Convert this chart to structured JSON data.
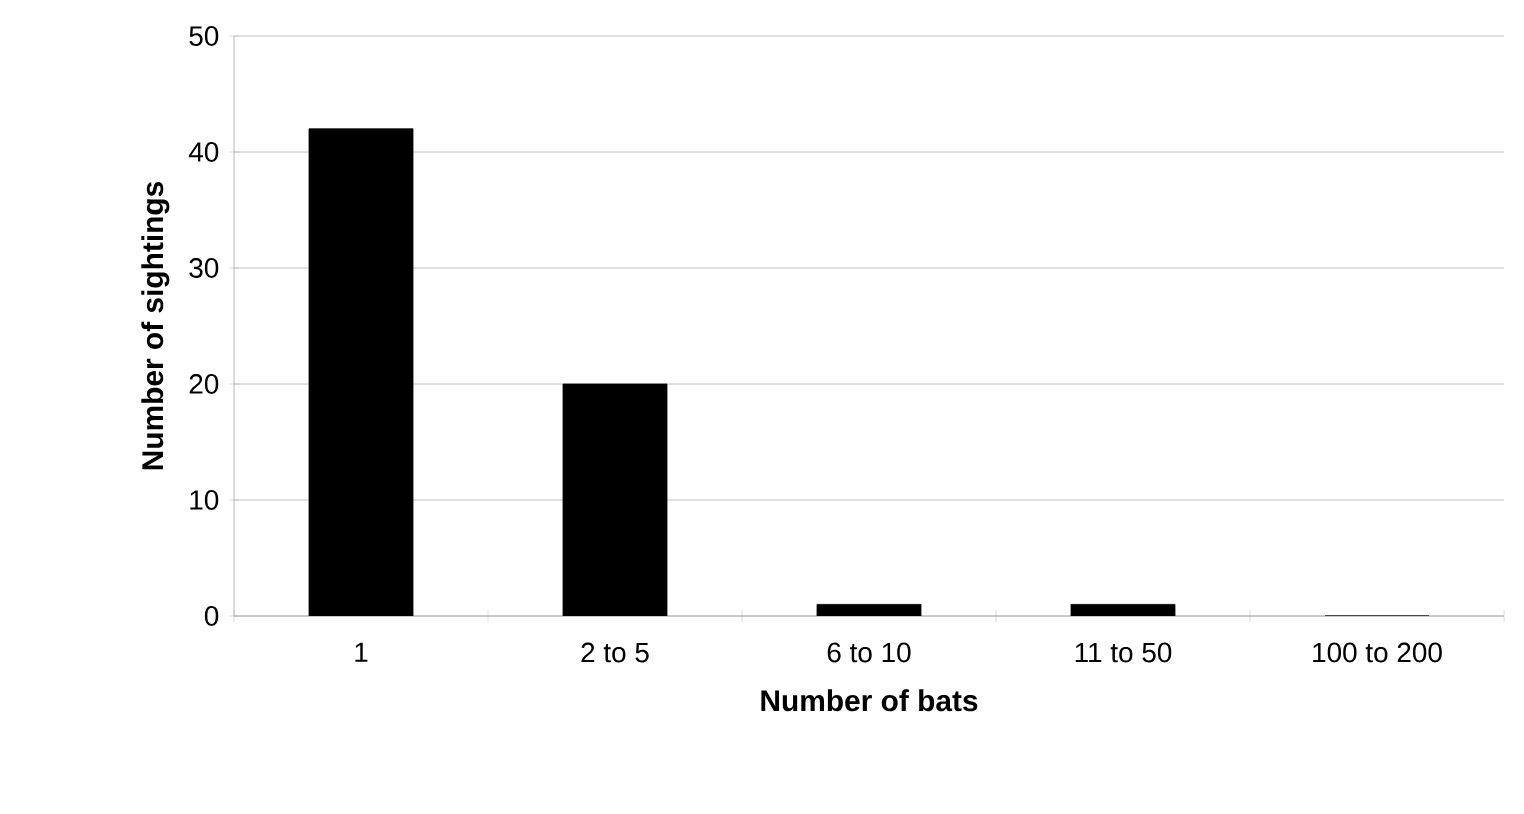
{
  "chart_data": {
    "type": "bar",
    "xlabel": "Number of bats",
    "ylabel": "Number of sightings",
    "categories": [
      "1",
      "2 to 5",
      "6 to 10",
      "11 to 50",
      "100 to 200"
    ],
    "values": [
      42,
      20,
      1,
      1,
      0
    ],
    "color": "#000000",
    "ylim": [
      0,
      50
    ],
    "yticks": [
      0,
      10,
      20,
      30,
      40,
      50
    ],
    "grid": "y"
  }
}
